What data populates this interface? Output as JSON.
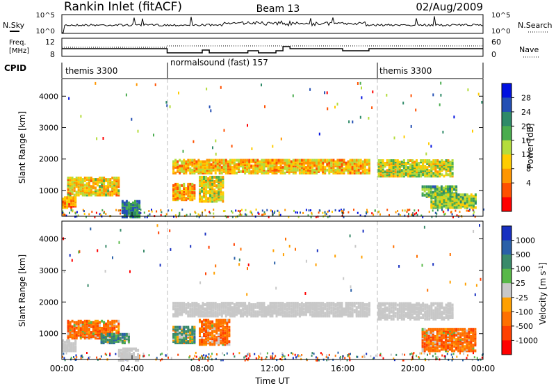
{
  "header": {
    "title": "Rankin Inlet (fitACF)",
    "beam": "Beam 13",
    "date": "02/Aug/2009"
  },
  "nsky_panel": {
    "left_label": "N.Sky",
    "left_ticks": [
      "10^5",
      "10^0"
    ],
    "right_label": "N.Search",
    "right_ticks": [
      "10^5",
      "10^0"
    ]
  },
  "freq_panel": {
    "left_label_line1": "Freq.",
    "left_label_line2": "[MHz]",
    "left_ticks": [
      "12",
      "8"
    ],
    "right_label": "Nave",
    "right_ticks": [
      "60",
      "0"
    ]
  },
  "cpid": {
    "label": "CPID",
    "segments": [
      {
        "start_hour": 0,
        "end_hour": 6,
        "text": "themis 3300"
      },
      {
        "start_hour": 6,
        "end_hour": 18,
        "text": "normalsound (fast) 157"
      },
      {
        "start_hour": 18,
        "end_hour": 24,
        "text": "themis 3300"
      }
    ]
  },
  "chart_data": [
    {
      "type": "heatmap",
      "parameter": "Power",
      "ylabel": "Slant Range [km]",
      "ylim": [
        180,
        4560
      ],
      "yticks": [
        "1000",
        "2000",
        "3000",
        "4000"
      ],
      "xlim": [
        0,
        24
      ],
      "colorbar_label": "Power [dB]",
      "colorbar_ticks": [
        "28",
        "24",
        "20",
        "16",
        "12",
        "8",
        "4"
      ],
      "colors": [
        "#0010e0",
        "#244fb4",
        "#2e8a68",
        "#4aac4e",
        "#b4dc3c",
        "#ffcc00",
        "#ff9600",
        "#ff5000",
        "#ff0000"
      ],
      "regions": [
        {
          "start_hour": 0.3,
          "end_hour": 3.2,
          "range_min": 900,
          "range_max": 1450,
          "value": 14
        },
        {
          "start_hour": 0.0,
          "end_hour": 0.8,
          "range_min": 500,
          "range_max": 850,
          "value": 10
        },
        {
          "start_hour": 3.4,
          "end_hour": 4.4,
          "range_min": 200,
          "range_max": 700,
          "value": 27
        },
        {
          "start_hour": 6.3,
          "end_hour": 7.6,
          "range_min": 750,
          "range_max": 1250,
          "value": 12
        },
        {
          "start_hour": 7.8,
          "end_hour": 9.2,
          "range_min": 700,
          "range_max": 1500,
          "value": 16
        },
        {
          "start_hour": 6.3,
          "end_hour": 17.5,
          "range_min": 1600,
          "range_max": 2050,
          "value": 13
        },
        {
          "start_hour": 18.0,
          "end_hour": 22.3,
          "range_min": 1500,
          "range_max": 2000,
          "value": 17
        },
        {
          "start_hour": 20.5,
          "end_hour": 22.5,
          "range_min": 850,
          "range_max": 1200,
          "value": 22
        },
        {
          "start_hour": 21.0,
          "end_hour": 23.6,
          "range_min": 500,
          "range_max": 950,
          "value": 19
        }
      ]
    },
    {
      "type": "heatmap",
      "parameter": "Velocity",
      "ylabel": "Slant Range [km]",
      "ylim": [
        180,
        4560
      ],
      "yticks": [
        "1000",
        "2000",
        "3000",
        "4000"
      ],
      "xlim": [
        0,
        24
      ],
      "xticks": [
        "00:00",
        "04:00",
        "08:00",
        "12:00",
        "16:00",
        "20:00",
        "00:00"
      ],
      "xlabel": "Time UT",
      "colorbar_label": "Velocity [m s^-1]",
      "colorbar_ticks": [
        "1000",
        "500",
        "100",
        "25",
        "-25",
        "-100",
        "-500",
        "-1000"
      ],
      "colors": [
        "#1830c0",
        "#2a60a8",
        "#3a8a6a",
        "#58b848",
        "#c8c8c8",
        "#ffa000",
        "#ff7000",
        "#ff4000",
        "#ff0000"
      ],
      "regions": [
        {
          "start_hour": 0.3,
          "end_hour": 3.2,
          "range_min": 900,
          "range_max": 1450,
          "value": -300
        },
        {
          "start_hour": 2.2,
          "end_hour": 3.8,
          "range_min": 750,
          "range_max": 1050,
          "value": 300
        },
        {
          "start_hour": 0.0,
          "end_hour": 0.8,
          "range_min": 500,
          "range_max": 850,
          "value": 0
        },
        {
          "start_hour": 3.2,
          "end_hour": 4.4,
          "range_min": 200,
          "range_max": 600,
          "value": 0
        },
        {
          "start_hour": 6.3,
          "end_hour": 7.6,
          "range_min": 750,
          "range_max": 1250,
          "value": 200
        },
        {
          "start_hour": 7.8,
          "end_hour": 9.5,
          "range_min": 700,
          "range_max": 1500,
          "value": -300
        },
        {
          "start_hour": 6.3,
          "end_hour": 17.5,
          "range_min": 1600,
          "range_max": 2050,
          "value": 0
        },
        {
          "start_hour": 18.0,
          "end_hour": 22.3,
          "range_min": 1500,
          "range_max": 2000,
          "value": 0
        },
        {
          "start_hour": 20.5,
          "end_hour": 23.6,
          "range_min": 500,
          "range_max": 1200,
          "value": -300
        }
      ]
    }
  ]
}
